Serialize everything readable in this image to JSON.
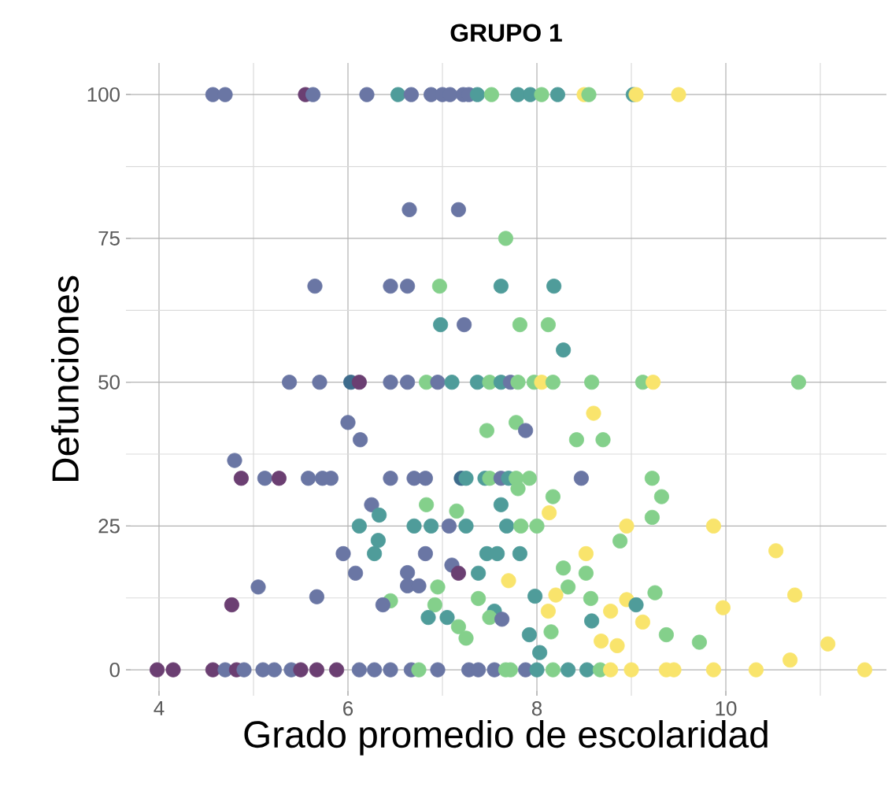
{
  "chart_data": {
    "type": "scatter",
    "title": "GRUPO 1",
    "xlabel": "Grado promedio de escolaridad",
    "ylabel": "Defunciones",
    "xlim": [
      3.65,
      11.7
    ],
    "ylim": [
      -4.5,
      105.5
    ],
    "xticks": [
      4,
      {
        "value": 5,
        "label": null
      },
      6,
      {
        "value": 7,
        "label": null
      },
      8,
      {
        "value": 9,
        "label": null
      },
      10,
      {
        "value": 11,
        "label": null
      }
    ],
    "yticks": [
      0,
      {
        "value": 12.5,
        "label": null
      },
      25,
      {
        "value": 37.5,
        "label": null
      },
      50,
      {
        "value": 62.5,
        "label": null
      },
      75,
      {
        "value": 87.5,
        "label": null
      },
      100
    ],
    "grid": true,
    "marker": "circle",
    "x": [
      4.57,
      4.7,
      5.55,
      5.63,
      6.2,
      6.53,
      6.67,
      6.88,
      7.0,
      7.08,
      7.22,
      7.28,
      7.37,
      7.52,
      7.8,
      7.93,
      8.05,
      8.22,
      8.5,
      8.55,
      9.02,
      9.05,
      9.5,
      6.65,
      7.17,
      7.67,
      5.65,
      6.45,
      6.63,
      6.97,
      7.62,
      8.18,
      6.98,
      7.23,
      7.82,
      8.12,
      8.28,
      5.38,
      5.7,
      6.03,
      6.12,
      6.45,
      6.63,
      6.83,
      6.95,
      7.1,
      7.37,
      7.5,
      7.62,
      7.72,
      7.8,
      7.97,
      8.05,
      8.17,
      8.58,
      9.12,
      9.23,
      10.77,
      8.6,
      6.0,
      7.78,
      7.47,
      7.88,
      6.13,
      8.42,
      8.7,
      4.8,
      4.87,
      5.12,
      5.27,
      5.58,
      5.73,
      5.82,
      6.45,
      6.7,
      6.82,
      7.2,
      7.25,
      7.45,
      7.5,
      7.62,
      7.7,
      7.78,
      7.92,
      8.47,
      9.22,
      7.8,
      8.17,
      9.32,
      7.62,
      6.25,
      6.83,
      8.13,
      6.33,
      7.15,
      9.22,
      6.12,
      6.7,
      6.88,
      7.07,
      7.25,
      7.68,
      7.83,
      8.0,
      8.95,
      9.87,
      6.32,
      8.88,
      5.95,
      6.28,
      6.82,
      7.47,
      7.58,
      7.82,
      8.52,
      10.53,
      7.1,
      8.28,
      6.08,
      7.17,
      7.38,
      8.52,
      6.63,
      7.7,
      8.33,
      5.05,
      6.95,
      6.63,
      6.75,
      9.25,
      10.73,
      8.2,
      5.67,
      8.57,
      7.38,
      7.98,
      8.95,
      6.45,
      4.77,
      6.37,
      6.92,
      9.05,
      9.97,
      8.78,
      8.12,
      7.55,
      6.85,
      7.05,
      7.5,
      7.63,
      8.58,
      9.12,
      7.17,
      8.15,
      9.37,
      7.92,
      7.25,
      8.68,
      9.72,
      11.08,
      8.85,
      8.03,
      10.68,
      3.98,
      4.15,
      4.57,
      4.7,
      4.82,
      4.9,
      5.1,
      5.22,
      5.4,
      5.5,
      5.67,
      5.88,
      6.12,
      6.28,
      6.45,
      6.67,
      6.75,
      6.95,
      7.28,
      7.38,
      7.55,
      7.67,
      7.72,
      7.88,
      8.0,
      8.17,
      8.33,
      8.53,
      8.67,
      8.78,
      9.0,
      9.37,
      9.45,
      9.87,
      10.32,
      11.47
    ],
    "values": [
      100,
      100,
      100,
      100,
      100,
      100,
      100,
      100,
      100,
      100,
      100,
      100,
      100,
      100,
      100,
      100,
      100,
      100,
      100,
      100,
      100,
      100,
      100,
      80,
      80,
      75,
      66.7,
      66.7,
      66.7,
      66.7,
      66.7,
      66.7,
      60,
      60,
      60,
      60,
      55.6,
      50,
      50,
      50,
      50,
      50,
      50,
      50,
      50,
      50,
      50,
      50,
      50,
      50,
      50,
      50,
      50,
      50,
      50,
      50,
      50,
      50,
      44.6,
      43,
      43,
      41.6,
      41.6,
      40,
      40,
      40,
      36.4,
      33.3,
      33.3,
      33.3,
      33.3,
      33.3,
      33.3,
      33.3,
      33.3,
      33.3,
      33.3,
      33.3,
      33.3,
      33.3,
      33.3,
      33.3,
      33.3,
      33.3,
      33.3,
      33.3,
      31.5,
      30.1,
      30.1,
      28.7,
      28.7,
      28.7,
      27.3,
      26.9,
      27.6,
      26.5,
      25,
      25,
      25,
      25,
      25,
      25,
      25,
      25,
      25,
      25,
      22.5,
      22.4,
      20.2,
      20.2,
      20.2,
      20.2,
      20.2,
      20.2,
      20.2,
      20.7,
      18.2,
      17.7,
      16.8,
      16.8,
      16.8,
      16.8,
      16.9,
      15.5,
      14.4,
      14.4,
      14.4,
      14.6,
      14.6,
      13.4,
      13,
      13,
      12.7,
      12.4,
      12.4,
      12.8,
      12.2,
      12,
      11.3,
      11.3,
      11.3,
      11.3,
      10.8,
      10.2,
      10.2,
      10.2,
      9.1,
      9.1,
      9.1,
      8.8,
      8.5,
      8.3,
      7.5,
      6.6,
      6.1,
      6.1,
      5.5,
      5,
      4.8,
      4.5,
      4.2,
      3,
      1.7,
      0,
      0,
      0,
      0,
      0,
      0,
      0,
      0,
      0,
      0,
      0,
      0,
      0,
      0,
      0,
      0,
      0,
      0,
      0,
      0,
      0,
      0,
      0,
      0,
      0,
      0,
      0,
      0,
      0,
      0,
      0,
      0,
      0,
      0,
      0,
      0
    ],
    "colors": [
      "#6a76a4",
      "#6a76a4",
      "#6b3f72",
      "#6a76a4",
      "#6a76a4",
      "#4f9c9a",
      "#6a76a4",
      "#6a76a4",
      "#6a76a4",
      "#6a76a4",
      "#6a76a4",
      "#6a76a4",
      "#4f9c9a",
      "#84d08b",
      "#4f9c9a",
      "#4f9c9a",
      "#84d08b",
      "#4f9c9a",
      "#f9e46c",
      "#84d08b",
      "#4f9c9a",
      "#f9e46c",
      "#f9e46c",
      "#6a76a4",
      "#6a76a4",
      "#84d08b",
      "#6a76a4",
      "#6a76a4",
      "#6a76a4",
      "#84d08b",
      "#4f9c9a",
      "#4f9c9a",
      "#4f9c9a",
      "#6a76a4",
      "#84d08b",
      "#84d08b",
      "#4f9c9a",
      "#6a76a4",
      "#6a76a4",
      "#3e6c8c",
      "#6b3f72",
      "#6a76a4",
      "#6a76a4",
      "#84d08b",
      "#6a76a4",
      "#4f9c9a",
      "#4f9c9a",
      "#84d08b",
      "#4f9c9a",
      "#6a76a4",
      "#84d08b",
      "#84d08b",
      "#f9e46c",
      "#84d08b",
      "#84d08b",
      "#84d08b",
      "#f9e46c",
      "#84d08b",
      "#f9e46c",
      "#6a76a4",
      "#84d08b",
      "#84d08b",
      "#6a76a4",
      "#6a76a4",
      "#84d08b",
      "#84d08b",
      "#6a76a4",
      "#6b3f72",
      "#6a76a4",
      "#6b3f72",
      "#6a76a4",
      "#6a76a4",
      "#6a76a4",
      "#6a76a4",
      "#6a76a4",
      "#6a76a4",
      "#3e6c8c",
      "#4f9c9a",
      "#4f9c9a",
      "#84d08b",
      "#6a76a4",
      "#4f9c9a",
      "#84d08b",
      "#84d08b",
      "#6a76a4",
      "#84d08b",
      "#84d08b",
      "#84d08b",
      "#84d08b",
      "#4f9c9a",
      "#6a76a4",
      "#84d08b",
      "#f9e46c",
      "#4f9c9a",
      "#84d08b",
      "#84d08b",
      "#4f9c9a",
      "#4f9c9a",
      "#4f9c9a",
      "#6a76a4",
      "#4f9c9a",
      "#4f9c9a",
      "#84d08b",
      "#84d08b",
      "#f9e46c",
      "#f9e46c",
      "#4f9c9a",
      "#84d08b",
      "#6a76a4",
      "#4f9c9a",
      "#6a76a4",
      "#4f9c9a",
      "#4f9c9a",
      "#4f9c9a",
      "#f9e46c",
      "#f9e46c",
      "#6a76a4",
      "#84d08b",
      "#6a76a4",
      "#6b3f72",
      "#4f9c9a",
      "#84d08b",
      "#6a76a4",
      "#f9e46c",
      "#84d08b",
      "#6a76a4",
      "#84d08b",
      "#6a76a4",
      "#6a76a4",
      "#84d08b",
      "#f9e46c",
      "#f9e46c",
      "#6a76a4",
      "#84d08b",
      "#84d08b",
      "#4f9c9a",
      "#f9e46c",
      "#84d08b",
      "#6b3f72",
      "#6a76a4",
      "#84d08b",
      "#4f9c9a",
      "#f9e46c",
      "#f9e46c",
      "#f9e46c",
      "#4f9c9a",
      "#4f9c9a",
      "#4f9c9a",
      "#84d08b",
      "#6a76a4",
      "#4f9c9a",
      "#f9e46c",
      "#84d08b",
      "#84d08b",
      "#84d08b",
      "#4f9c9a",
      "#84d08b",
      "#f9e46c",
      "#84d08b",
      "#f9e46c",
      "#f9e46c",
      "#4f9c9a",
      "#f9e46c",
      "#6b3f72",
      "#6b3f72",
      "#6b3f72",
      "#6a76a4",
      "#6b3f72",
      "#6a76a4",
      "#6a76a4",
      "#6a76a4",
      "#6a76a4",
      "#6b3f72",
      "#6b3f72",
      "#6b3f72",
      "#6a76a4",
      "#6a76a4",
      "#6a76a4",
      "#6a76a4",
      "#84d08b",
      "#6a76a4",
      "#6a76a4",
      "#6a76a4",
      "#6a76a4",
      "#84d08b",
      "#84d08b",
      "#6a76a4",
      "#4f9c9a",
      "#84d08b",
      "#4f9c9a",
      "#4f9c9a",
      "#84d08b",
      "#f9e46c",
      "#f9e46c",
      "#f9e46c",
      "#f9e46c",
      "#f9e46c",
      "#f9e46c",
      "#f9e46c"
    ]
  }
}
